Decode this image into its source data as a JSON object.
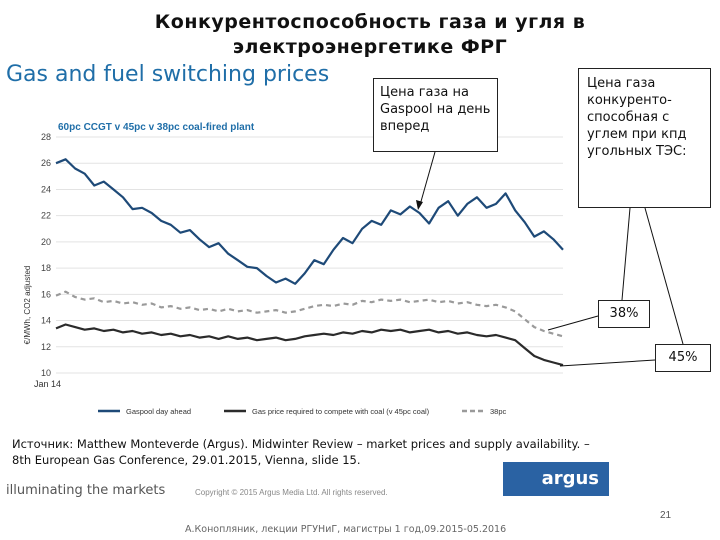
{
  "slide": {
    "title": "Конкурентоспособность газа и угля в электроэнергетике ФРГ",
    "subtitle": "Gas and fuel switching prices",
    "source": "Источник: Matthew Monteverde (Argus). Midwinter Review – market prices and supply availability. – 8th European Gas Conference, 29.01.2015, Vienna, slide 15.",
    "tagline": "illuminating the markets",
    "copyright": "Copyright © 2015 Argus Media Ltd. All rights reserved.",
    "logo_text": "argus",
    "page_number": "21",
    "footer": "А.Конопляник, лекции РГУНиГ, магистры 1 год,09.2015-05.2016"
  },
  "callouts": {
    "gaspool": "Цена газа на Gaspool на день вперед",
    "competitive": "Цена газа конкуренто-способная с углем при кпд угольных ТЭС:",
    "pct_38": "38%",
    "pct_45": "45%"
  },
  "colors": {
    "gaspool": "#1e4a78",
    "compete45": "#2b2b2b",
    "pc38": "#9a9a9a",
    "accent": "#1f6ea8",
    "logo": "#2a62a3"
  },
  "chart_data": {
    "type": "line",
    "title": "60pc CCGT v 45pc v 38pc coal-fired plant",
    "ylabel": "€/MWh, CO2 adjusted",
    "ylim": [
      10,
      28
    ],
    "yticks": [
      10,
      12,
      14,
      16,
      18,
      20,
      22,
      24,
      26,
      28
    ],
    "x_tick_label": "Jan 14",
    "grid": true,
    "legend_placement": "bottom",
    "series": [
      {
        "name": "Gaspool day ahead",
        "style": "solid",
        "values": [
          26.0,
          26.3,
          25.6,
          25.2,
          24.3,
          24.6,
          24.0,
          23.4,
          22.5,
          22.6,
          22.2,
          21.6,
          21.3,
          20.7,
          20.9,
          20.2,
          19.6,
          19.9,
          19.1,
          18.6,
          18.1,
          18.0,
          17.4,
          16.9,
          17.2,
          16.8,
          17.6,
          18.6,
          18.3,
          19.4,
          20.3,
          19.9,
          21.0,
          21.6,
          21.3,
          22.4,
          22.1,
          22.7,
          22.2,
          21.4,
          22.6,
          23.1,
          22.0,
          22.9,
          23.4,
          22.6,
          22.9,
          23.7,
          22.4,
          21.5,
          20.4,
          20.8,
          20.2,
          19.4
        ]
      },
      {
        "name": "Gas price required to compete with coal (v 45pc coal)",
        "style": "solid",
        "values": [
          13.4,
          13.7,
          13.5,
          13.3,
          13.4,
          13.2,
          13.3,
          13.1,
          13.2,
          13.0,
          13.1,
          12.9,
          13.0,
          12.8,
          12.9,
          12.7,
          12.8,
          12.6,
          12.8,
          12.6,
          12.7,
          12.5,
          12.6,
          12.7,
          12.5,
          12.6,
          12.8,
          12.9,
          13.0,
          12.9,
          13.1,
          13.0,
          13.2,
          13.1,
          13.3,
          13.2,
          13.3,
          13.1,
          13.2,
          13.3,
          13.1,
          13.2,
          13.0,
          13.1,
          12.9,
          12.8,
          12.9,
          12.7,
          12.5,
          11.9,
          11.3,
          11.0,
          10.8,
          10.6
        ]
      },
      {
        "name": "38pc",
        "style": "dashed",
        "values": [
          15.9,
          16.2,
          15.8,
          15.6,
          15.7,
          15.4,
          15.5,
          15.3,
          15.4,
          15.2,
          15.3,
          15.0,
          15.1,
          14.9,
          15.0,
          14.8,
          14.9,
          14.7,
          14.9,
          14.7,
          14.8,
          14.6,
          14.7,
          14.8,
          14.6,
          14.7,
          14.9,
          15.1,
          15.2,
          15.1,
          15.3,
          15.2,
          15.5,
          15.4,
          15.6,
          15.5,
          15.6,
          15.4,
          15.5,
          15.6,
          15.4,
          15.5,
          15.3,
          15.4,
          15.2,
          15.1,
          15.2,
          15.0,
          14.7,
          14.1,
          13.5,
          13.2,
          13.0,
          12.8
        ]
      }
    ]
  }
}
